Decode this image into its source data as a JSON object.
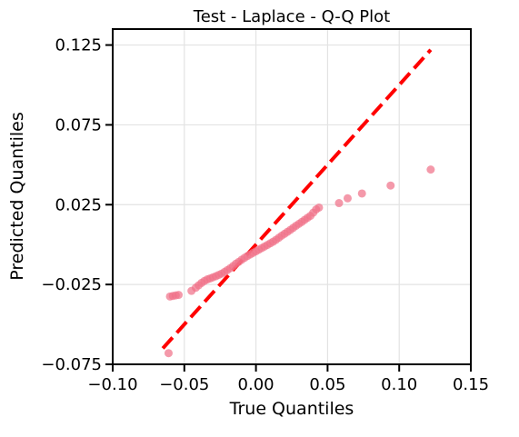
{
  "chart_data": {
    "type": "scatter",
    "title": "Test - Laplace - Q-Q Plot",
    "xlabel": "True Quantiles",
    "ylabel": "Predicted Quantiles",
    "xlim": [
      -0.1,
      0.15
    ],
    "ylim": [
      -0.075,
      0.135
    ],
    "x_ticks": [
      -0.1,
      -0.05,
      0.0,
      0.05,
      0.1,
      0.15
    ],
    "x_tick_labels": [
      "−0.10",
      "−0.05",
      "0.00",
      "0.05",
      "0.10",
      "0.15"
    ],
    "y_ticks": [
      -0.075,
      -0.025,
      0.025,
      0.075,
      0.125
    ],
    "y_tick_labels": [
      "−0.075",
      "−0.025",
      "0.025",
      "0.075",
      "0.125"
    ],
    "grid": true,
    "point_color": "#f07189",
    "reference_line": {
      "style": "dashed",
      "color": "#ff0000",
      "x": [
        -0.065,
        0.122
      ],
      "y": [
        -0.065,
        0.122
      ]
    },
    "points": [
      {
        "x": -0.061,
        "y": -0.068
      },
      {
        "x": -0.06,
        "y": -0.0325
      },
      {
        "x": -0.058,
        "y": -0.0322
      },
      {
        "x": -0.056,
        "y": -0.0318
      },
      {
        "x": -0.054,
        "y": -0.0315
      },
      {
        "x": -0.045,
        "y": -0.029
      },
      {
        "x": -0.042,
        "y": -0.027
      },
      {
        "x": -0.04,
        "y": -0.0255
      },
      {
        "x": -0.038,
        "y": -0.024
      },
      {
        "x": -0.036,
        "y": -0.0228
      },
      {
        "x": -0.034,
        "y": -0.0218
      },
      {
        "x": -0.032,
        "y": -0.0212
      },
      {
        "x": -0.03,
        "y": -0.0205
      },
      {
        "x": -0.028,
        "y": -0.0198
      },
      {
        "x": -0.026,
        "y": -0.019
      },
      {
        "x": -0.024,
        "y": -0.0182
      },
      {
        "x": -0.022,
        "y": -0.0172
      },
      {
        "x": -0.02,
        "y": -0.016
      },
      {
        "x": -0.018,
        "y": -0.0148
      },
      {
        "x": -0.016,
        "y": -0.0135
      },
      {
        "x": -0.014,
        "y": -0.012
      },
      {
        "x": -0.012,
        "y": -0.0108
      },
      {
        "x": -0.01,
        "y": -0.0095
      },
      {
        "x": -0.008,
        "y": -0.0083
      },
      {
        "x": -0.006,
        "y": -0.0072
      },
      {
        "x": -0.004,
        "y": -0.0062
      },
      {
        "x": -0.002,
        "y": -0.0052
      },
      {
        "x": 0.0,
        "y": -0.0042
      },
      {
        "x": 0.002,
        "y": -0.0032
      },
      {
        "x": 0.004,
        "y": -0.0022
      },
      {
        "x": 0.006,
        "y": -0.0012
      },
      {
        "x": 0.008,
        "y": -0.0002
      },
      {
        "x": 0.01,
        "y": 0.0008
      },
      {
        "x": 0.012,
        "y": 0.0018
      },
      {
        "x": 0.014,
        "y": 0.003
      },
      {
        "x": 0.016,
        "y": 0.0043
      },
      {
        "x": 0.018,
        "y": 0.0056
      },
      {
        "x": 0.02,
        "y": 0.0068
      },
      {
        "x": 0.022,
        "y": 0.008
      },
      {
        "x": 0.024,
        "y": 0.0092
      },
      {
        "x": 0.026,
        "y": 0.0105
      },
      {
        "x": 0.028,
        "y": 0.0118
      },
      {
        "x": 0.03,
        "y": 0.013
      },
      {
        "x": 0.032,
        "y": 0.0142
      },
      {
        "x": 0.034,
        "y": 0.0155
      },
      {
        "x": 0.036,
        "y": 0.0168
      },
      {
        "x": 0.038,
        "y": 0.018
      },
      {
        "x": 0.04,
        "y": 0.02
      },
      {
        "x": 0.042,
        "y": 0.022
      },
      {
        "x": 0.044,
        "y": 0.0232
      },
      {
        "x": 0.058,
        "y": 0.026
      },
      {
        "x": 0.064,
        "y": 0.029
      },
      {
        "x": 0.074,
        "y": 0.032
      },
      {
        "x": 0.094,
        "y": 0.037
      },
      {
        "x": 0.122,
        "y": 0.047
      }
    ]
  }
}
